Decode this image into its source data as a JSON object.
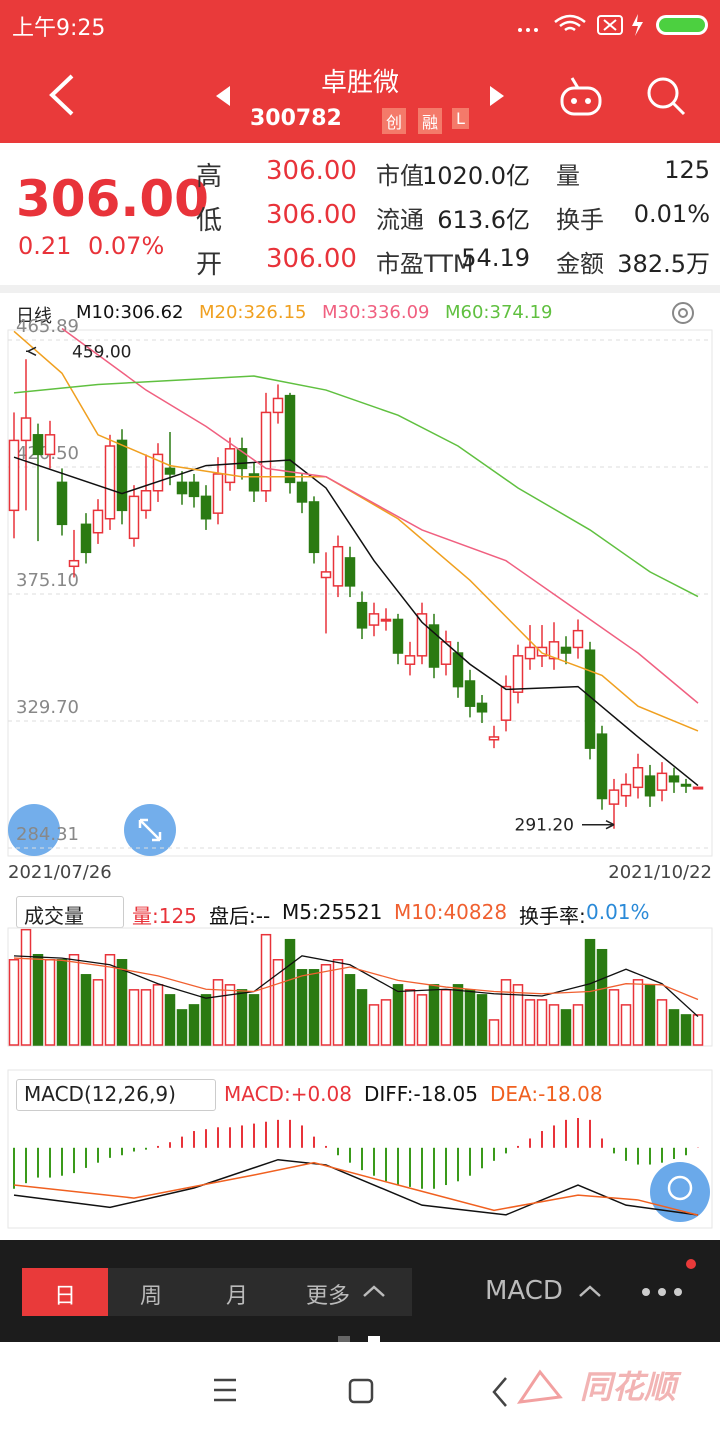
{
  "status": {
    "time": "上午9:25"
  },
  "nav": {
    "title": "卓胜微",
    "code": "300782",
    "tags": [
      "创",
      "融",
      "L"
    ]
  },
  "quote": {
    "price": "306.00",
    "change": "0.21",
    "pct": "0.07%",
    "prices": [
      [
        "高",
        "306.00"
      ],
      [
        "低",
        "306.00"
      ],
      [
        "开",
        "306.00"
      ]
    ],
    "stats": [
      [
        "市值",
        "1020.0亿"
      ],
      [
        "流通",
        "613.6亿"
      ],
      [
        "市盈TTM",
        "54.19"
      ]
    ],
    "stats2": [
      [
        "量",
        "125"
      ],
      [
        "换手",
        "0.01%"
      ],
      [
        "金额",
        "382.5万"
      ]
    ]
  },
  "kline": {
    "period": "日线",
    "legend": [
      "M10:306.62",
      "M20:326.15",
      "M30:336.09",
      "M60:374.19"
    ],
    "ma_colors": [
      "#111111",
      "#f0a020",
      "#f06080",
      "#60c040"
    ],
    "start_date": "2021/07/26",
    "end_date": "2021/10/22",
    "high_label": "459.00",
    "low_label": "291.20",
    "ylim": [
      284.31,
      465.89
    ],
    "yticks": [
      465.89,
      {
        "value": 420.5,
        "label": "420.50"
      },
      {
        "value": 375.1,
        "label": "375.10"
      },
      {
        "value": 329.7,
        "label": "329.70"
      },
      284.31
    ],
    "up_color": "#e8333a",
    "down_color": "#2a7a12",
    "open": [
      405,
      430,
      432,
      425,
      415,
      385,
      400,
      397,
      402,
      430,
      395,
      405,
      412,
      420,
      415,
      415,
      410,
      404,
      415,
      427,
      418,
      412,
      440,
      446,
      415,
      408,
      381,
      378,
      388,
      372,
      364,
      366,
      366,
      350,
      353,
      364,
      350,
      354,
      344,
      336,
      323,
      330,
      340,
      352,
      353,
      352,
      356,
      356,
      355,
      325,
      300,
      303,
      306,
      310,
      305,
      310,
      307,
      306
    ],
    "close": [
      430,
      438,
      425,
      432,
      400,
      387,
      390,
      405,
      428,
      405,
      410,
      412,
      425,
      418,
      411,
      410,
      402,
      418,
      427,
      420,
      412,
      440,
      445,
      415,
      408,
      390,
      383,
      392,
      378,
      363,
      368,
      366,
      354,
      353,
      368,
      349,
      358,
      342,
      335,
      333,
      324,
      342,
      353,
      356,
      356,
      358,
      354,
      362,
      320,
      302,
      305,
      307,
      313,
      303,
      311,
      308,
      306.5,
      306
    ],
    "high": [
      440,
      459,
      436,
      437,
      420,
      398,
      404,
      409,
      432,
      434,
      414,
      425,
      429,
      433,
      419,
      418,
      414,
      424,
      431,
      431,
      422,
      447,
      450,
      447,
      418,
      410,
      390,
      396,
      392,
      376,
      372,
      370,
      368,
      358,
      372,
      368,
      362,
      358,
      348,
      339,
      328,
      346,
      357,
      364,
      364,
      365,
      360,
      366,
      358,
      328,
      309,
      311,
      318,
      314,
      315,
      313,
      309,
      306
    ],
    "low": [
      395,
      405,
      394,
      420,
      396,
      381,
      386,
      393,
      398,
      400,
      392,
      402,
      408,
      414,
      407,
      406,
      398,
      400,
      412,
      416,
      408,
      408,
      436,
      411,
      404,
      386,
      361,
      374,
      374,
      359,
      360,
      362,
      350,
      346,
      350,
      345,
      346,
      338,
      331,
      329,
      320,
      326,
      336,
      348,
      349,
      348,
      350,
      352,
      316,
      298,
      291.2,
      299,
      302,
      299,
      301,
      304,
      304,
      306
    ],
    "ma": [
      {
        "x": [
          0,
          9,
          16,
          23,
          26,
          30,
          34,
          38,
          41,
          47,
          52,
          57
        ],
        "values": [
          424,
          411,
          421,
          423,
          413,
          387,
          365,
          350,
          341,
          342,
          324,
          306.62
        ]
      },
      {
        "x": [
          0,
          4,
          7,
          13,
          19,
          26,
          32,
          38,
          44,
          49,
          52,
          57
        ],
        "values": [
          469,
          454,
          432,
          421,
          417,
          417,
          402,
          380,
          354,
          346,
          335,
          326.15
        ]
      },
      {
        "x": [
          4,
          11,
          16,
          21,
          26,
          34,
          41,
          46,
          52,
          57
        ],
        "values": [
          470,
          448,
          435,
          420,
          417,
          398,
          387,
          372,
          354,
          336.09
        ]
      },
      {
        "x": [
          0,
          7,
          20,
          26,
          32,
          37,
          42,
          48,
          53,
          57
        ],
        "values": [
          447,
          450,
          453,
          448,
          439,
          428,
          413,
          398,
          383,
          374.19
        ]
      }
    ]
  },
  "volume": {
    "title": "成交量",
    "labels": [
      "量:125",
      "盘后:--",
      "M5:25521",
      "M10:40828"
    ],
    "turnover_label": "换手率:",
    "turnover": "0.01%",
    "ylim": [
      0,
      105000
    ],
    "values": [
      76500,
      103500,
      81000,
      76500,
      76500,
      81000,
      63000,
      58500,
      81000,
      76500,
      49500,
      49500,
      54000,
      45000,
      31500,
      36000,
      45000,
      58500,
      54000,
      49500,
      45000,
      99000,
      76500,
      94500,
      67500,
      67500,
      72000,
      76500,
      63000,
      49500,
      36000,
      40500,
      54000,
      49500,
      45000,
      54000,
      49500,
      54000,
      49500,
      45000,
      22500,
      58500,
      54000,
      40500,
      40500,
      36000,
      31500,
      36000,
      94500,
      85500,
      49500,
      36000,
      58500,
      54000,
      40500,
      31500,
      27000,
      27000
    ],
    "ma": [
      {
        "color": "#111111",
        "x": [
          0,
          4,
          8,
          12,
          16,
          20,
          24,
          28,
          32,
          36,
          40,
          44,
          48,
          51,
          54,
          57
        ],
        "values": [
          80000,
          78000,
          72000,
          55000,
          42000,
          48000,
          80000,
          72000,
          48000,
          50000,
          46000,
          44000,
          55000,
          68000,
          55000,
          25521
        ]
      },
      {
        "color": "#f06030",
        "x": [
          0,
          4,
          8,
          12,
          16,
          20,
          24,
          28,
          32,
          36,
          40,
          44,
          48,
          51,
          54,
          57
        ],
        "values": [
          78000,
          76000,
          70000,
          62000,
          50000,
          48000,
          62000,
          70000,
          58000,
          52000,
          48000,
          46000,
          48000,
          55000,
          54000,
          40828
        ]
      }
    ]
  },
  "macd": {
    "title": "MACD(12,26,9)",
    "labels": [
      "MACD:+0.08",
      "DIFF:-18.05",
      "DEA:-18.08"
    ],
    "ylim": [
      -21,
      8
    ],
    "values": [
      -11,
      -9.5,
      -8,
      -8,
      -7.5,
      -6.8,
      -5.4,
      -4,
      -2.7,
      -2,
      -1,
      -0.5,
      0.5,
      1.5,
      3,
      4.5,
      5,
      5.5,
      5.5,
      6,
      6.5,
      7,
      7.5,
      7.5,
      6,
      3,
      0.5,
      -2,
      -4,
      -6,
      -7.5,
      -9,
      -10,
      -10.5,
      -11,
      -11,
      -10,
      -9,
      -7.5,
      -5.5,
      -3.5,
      -1.5,
      0.5,
      2.5,
      4.5,
      6,
      7.5,
      8,
      7.5,
      2.5,
      -1.5,
      -3.5,
      -4.5,
      -4.5,
      -4,
      -3,
      -2,
      0.08
    ],
    "lines": [
      {
        "color": "#111111",
        "x": [
          0,
          8,
          15,
          22,
          26,
          34,
          41,
          47,
          51,
          57
        ],
        "values": [
          -12.7,
          -16,
          -10.8,
          -3.2,
          -4.6,
          -15.4,
          -18,
          -10,
          -15.4,
          -18.05
        ]
      },
      {
        "color": "#f06020",
        "x": [
          0,
          10,
          20,
          25,
          32,
          40,
          47,
          52,
          57
        ],
        "values": [
          -10,
          -13.5,
          -7.3,
          -4,
          -10,
          -16.8,
          -12.7,
          -14,
          -18.08
        ]
      }
    ]
  },
  "bottom": {
    "tabs": [
      "日",
      "周",
      "月",
      "更多"
    ],
    "indicator": "MACD",
    "brand": "同花顺"
  }
}
